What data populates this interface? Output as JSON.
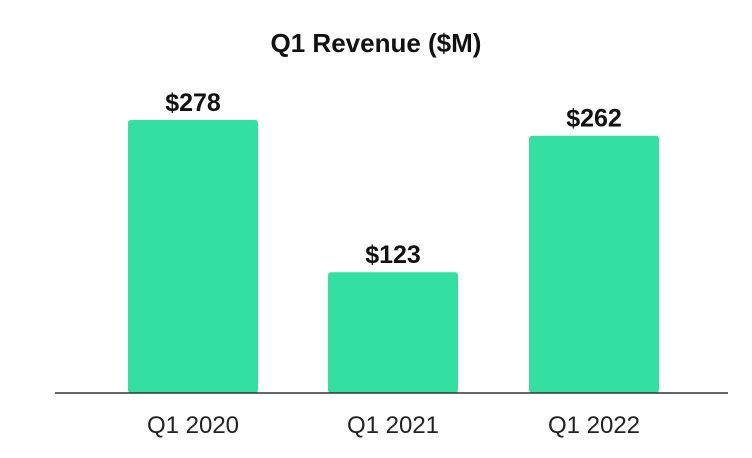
{
  "chart_data": {
    "type": "bar",
    "title": "Q1 Revenue ($M)",
    "categories": [
      "Q1 2020",
      "Q1 2021",
      "Q1 2022"
    ],
    "values": [
      278,
      123,
      262
    ],
    "data_labels": [
      "$278",
      "$123",
      "$262"
    ],
    "xlabel": "",
    "ylabel": "",
    "ylim": [
      0,
      278
    ],
    "grid": false,
    "legend": "none",
    "bar_color": "#34E0A1",
    "axis_color": "#333333"
  }
}
